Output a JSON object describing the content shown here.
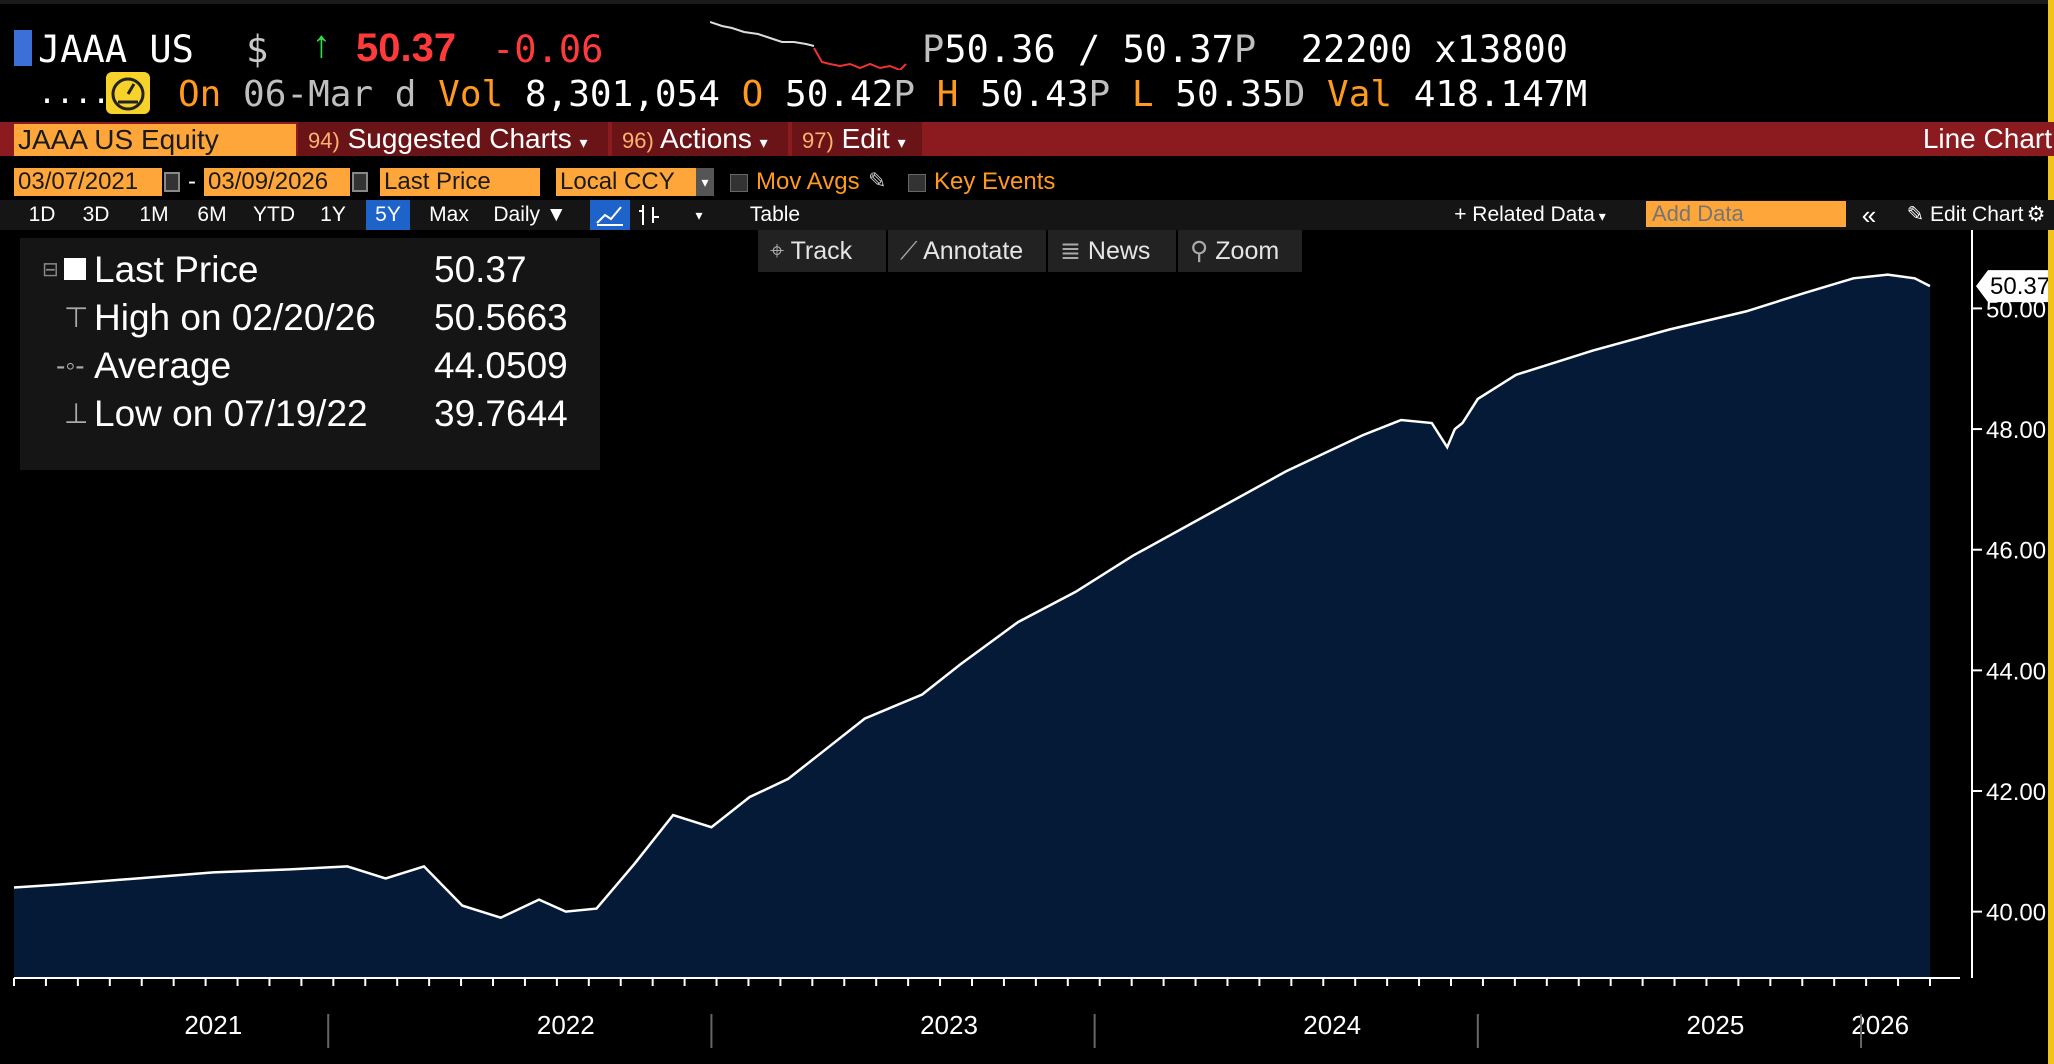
{
  "header": {
    "ticker": "JAAA US",
    "currency": "$",
    "direction_icon": "up-arrow-icon",
    "last": "50.37",
    "change": "-0.06",
    "bid_ask_prefix": "P",
    "bid": "50.36",
    "sep": "/",
    "ask": "50.37",
    "ask_suffix": "P",
    "size": "22200",
    "x": "x",
    "size2": "13800"
  },
  "stats": {
    "dots": ".....",
    "on_label": "On",
    "date": "06-Mar",
    "date_suffix": "d",
    "vol_label": "Vol",
    "vol": "8,301,054",
    "open_label": "O",
    "open": "50.42",
    "open_suffix": "P",
    "high_label": "H",
    "high": "50.43",
    "high_suffix": "P",
    "low_label": "L",
    "low": "50.35",
    "low_suffix": "D",
    "val_label": "Val",
    "val": "418.147M"
  },
  "menubar": {
    "security": "JAAA US Equity",
    "suggested_num": "94)",
    "suggested": "Suggested Charts",
    "actions_num": "96)",
    "actions": "Actions",
    "edit_num": "97)",
    "edit": "Edit",
    "chart_type": "Line Chart"
  },
  "fields": {
    "start_date": "03/07/2021",
    "dash": "-",
    "end_date": "03/09/2026",
    "field": "Last Price",
    "currency": "Local CCY",
    "mov_avgs": "Mov Avgs",
    "key_events": "Key Events"
  },
  "periods": {
    "items": [
      "1D",
      "3D",
      "1M",
      "6M",
      "YTD",
      "1Y",
      "5Y",
      "Max"
    ],
    "selected": "5Y",
    "frequency": "Daily",
    "table": "Table",
    "related": "+ Related Data",
    "add_data_placeholder": "Add Data",
    "edit_chart": "Edit Chart"
  },
  "toolbar": {
    "track": "Track",
    "annotate": "Annotate",
    "news": "News",
    "zoom": "Zoom"
  },
  "legend": {
    "rows": [
      {
        "label": "Last Price",
        "value": "50.37"
      },
      {
        "label": "High on 02/20/26",
        "value": "50.5663"
      },
      {
        "label": "Average",
        "value": "44.0509"
      },
      {
        "label": "Low on 07/19/22",
        "value": "39.7644"
      }
    ]
  },
  "colors": {
    "area_fill": "#041a36",
    "line": "#ffffff",
    "price_up": "#2ee04a",
    "price_down": "#ff3a3a",
    "orange": "#ff9a1f",
    "menubar": "#8c1b20"
  },
  "chart_data": {
    "type": "area",
    "x_axis_labels": [
      "2021",
      "2022",
      "2023",
      "2024",
      "2025",
      "2026"
    ],
    "y_ticks": [
      "40.00",
      "42.00",
      "44.00",
      "46.00",
      "48.00",
      "50.00"
    ],
    "ylim": [
      38.9,
      51.3
    ],
    "last_label": "50.37",
    "series": [
      {
        "x": [
          2021.18,
          2021.3,
          2021.5,
          2021.7,
          2021.9,
          2022.05,
          2022.15,
          2022.25,
          2022.35,
          2022.45,
          2022.55,
          2022.62,
          2022.7,
          2022.8,
          2022.9,
          2023.0,
          2023.1,
          2023.2,
          2023.3,
          2023.4,
          2023.55,
          2023.65,
          2023.8,
          2023.95,
          2024.1,
          2024.3,
          2024.5,
          2024.7,
          2024.8,
          2024.88,
          2024.92,
          2024.94,
          2024.96,
          2025.0,
          2025.1,
          2025.3,
          2025.5,
          2025.7,
          2025.85,
          2025.98,
          2026.07,
          2026.14,
          2026.18
        ],
        "y": [
          40.4,
          40.45,
          40.55,
          40.65,
          40.7,
          40.75,
          40.55,
          40.75,
          40.1,
          39.9,
          40.2,
          40.0,
          40.05,
          40.8,
          41.6,
          41.4,
          41.9,
          42.2,
          42.7,
          43.2,
          43.6,
          44.1,
          44.8,
          45.3,
          45.9,
          46.6,
          47.3,
          47.9,
          48.15,
          48.1,
          47.7,
          48.0,
          48.1,
          48.5,
          48.9,
          49.3,
          49.65,
          49.95,
          50.25,
          50.5,
          50.56,
          50.5,
          50.37
        ]
      }
    ]
  }
}
